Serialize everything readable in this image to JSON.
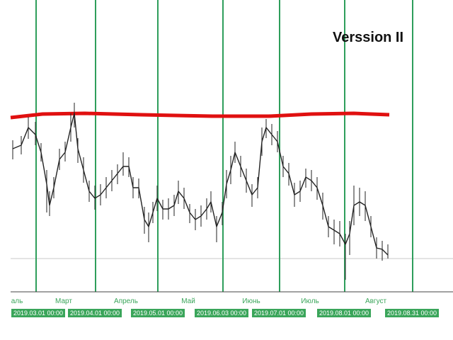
{
  "title": "Verssion II",
  "month_labels": [
    "аль",
    "Март",
    "Апрель",
    "Май",
    "Июнь",
    "Июль",
    "Август"
  ],
  "date_labels": [
    "2019.03.01 00:00",
    "2019.04.01 00:00",
    "2019.05.01 00:00",
    "2019.06.03 00:00",
    "2019.07.01 00:00",
    "2019.08.01 00:00",
    "2019.08.31 00:00"
  ]
}
